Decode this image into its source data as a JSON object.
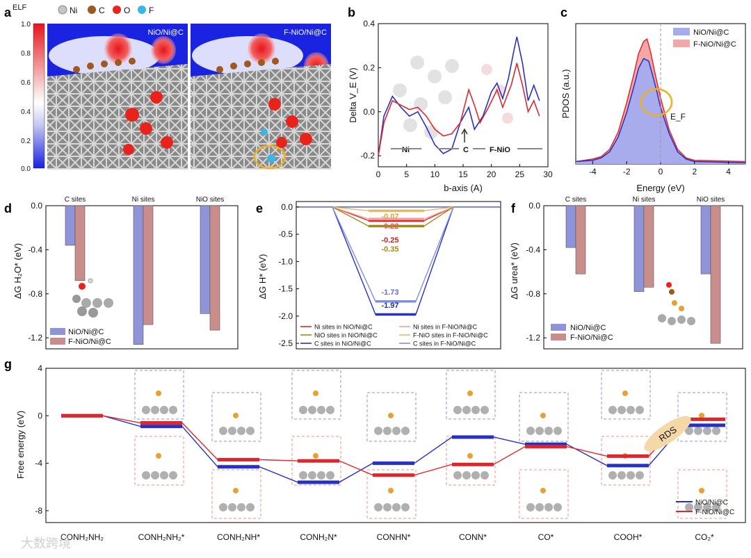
{
  "figure": {
    "panel_letters": [
      "a",
      "b",
      "c",
      "d",
      "e",
      "f",
      "g"
    ],
    "watermark": "大数跨境"
  },
  "panel_a": {
    "legend": {
      "title": "ELF",
      "ticks": [
        "1.0",
        "0.8",
        "0.6",
        "0.4",
        "0.2",
        "0.0"
      ]
    },
    "atoms": [
      "Ni",
      "C",
      "O",
      "F"
    ],
    "atom_colors": {
      "Ni": "#b5b5b5",
      "C": "#a0581c",
      "O": "#e8231c",
      "F": "#3ab5e6"
    },
    "left_label": "NiO/Ni@C",
    "right_label": "F-NiO/Ni@C"
  },
  "chart_data": [
    {
      "panel": "b",
      "type": "line",
      "ylabel": "Delta V_E (V)",
      "xlabel": "b-axis (A)",
      "xlim": [
        0,
        30
      ],
      "ylim": [
        -0.25,
        0.4
      ],
      "xticks": [
        "0",
        "5",
        "10",
        "15",
        "20",
        "25",
        "30"
      ],
      "yticks": [
        "-0.2",
        "0.0",
        "0.2",
        "0.4"
      ],
      "region_labels": [
        "Ni",
        "C",
        "F-NiO"
      ],
      "series": [
        {
          "color": "#2630c4",
          "points": [
            [
              0,
              -0.2
            ],
            [
              1,
              -0.02
            ],
            [
              2.5,
              0.07
            ],
            [
              4,
              0.02
            ],
            [
              5.5,
              -0.02
            ],
            [
              7,
              0.0
            ],
            [
              8.5,
              -0.07
            ],
            [
              10,
              -0.15
            ],
            [
              11.5,
              -0.19
            ],
            [
              13,
              -0.17
            ],
            [
              14.5,
              -0.05
            ],
            [
              16,
              0.02
            ],
            [
              17,
              -0.08
            ],
            [
              18.5,
              -0.02
            ],
            [
              20,
              0.09
            ],
            [
              21,
              0.13
            ],
            [
              22,
              0.06
            ],
            [
              23,
              0.15
            ],
            [
              24,
              0.28
            ],
            [
              24.5,
              0.34
            ],
            [
              25.5,
              0.22
            ],
            [
              26.5,
              0.05
            ],
            [
              27.5,
              0.12
            ],
            [
              28.5,
              0.05
            ]
          ]
        },
        {
          "color": "#e0262b",
          "points": [
            [
              0,
              -0.2
            ],
            [
              1,
              -0.05
            ],
            [
              2.5,
              0.05
            ],
            [
              4,
              0.03
            ],
            [
              5.5,
              0.01
            ],
            [
              7,
              0.02
            ],
            [
              8.5,
              -0.02
            ],
            [
              10,
              -0.08
            ],
            [
              11.5,
              -0.11
            ],
            [
              13,
              -0.1
            ],
            [
              14.5,
              -0.05
            ],
            [
              16,
              0.1
            ],
            [
              17,
              0.03
            ],
            [
              18,
              -0.05
            ],
            [
              19.5,
              0.02
            ],
            [
              21,
              0.1
            ],
            [
              22,
              0.02
            ],
            [
              23.5,
              0.12
            ],
            [
              24.5,
              0.22
            ],
            [
              25.5,
              0.12
            ],
            [
              26.5,
              0.0
            ],
            [
              27.5,
              0.05
            ],
            [
              28.5,
              -0.02
            ]
          ]
        }
      ]
    },
    {
      "panel": "c",
      "type": "area",
      "ylabel": "PDOS (a.u.)",
      "xlabel": "Energy (eV)",
      "xlim": [
        -5,
        5
      ],
      "xticks": [
        "-4",
        "-2",
        "0",
        "2",
        "4"
      ],
      "fermi_label": "E_F",
      "series": [
        {
          "name": "NiO/Ni@C",
          "color": "#2630c4",
          "fill": "#a8acec",
          "points": [
            [
              -5,
              0.02
            ],
            [
              -4,
              0.03
            ],
            [
              -3.5,
              0.05
            ],
            [
              -3,
              0.1
            ],
            [
              -2.5,
              0.22
            ],
            [
              -2,
              0.42
            ],
            [
              -1.6,
              0.62
            ],
            [
              -1.3,
              0.78
            ],
            [
              -1,
              0.86
            ],
            [
              -0.7,
              0.84
            ],
            [
              -0.5,
              0.74
            ],
            [
              -0.2,
              0.58
            ],
            [
              0,
              0.46
            ],
            [
              0.5,
              0.25
            ],
            [
              1,
              0.1
            ],
            [
              1.5,
              0.04
            ],
            [
              2,
              0.02
            ],
            [
              5,
              0.01
            ]
          ]
        },
        {
          "name": "F-NiO/Ni@C",
          "color": "#e0262b",
          "fill": "#f2a8a6",
          "points": [
            [
              -5,
              0.02
            ],
            [
              -4,
              0.04
            ],
            [
              -3.5,
              0.06
            ],
            [
              -3,
              0.12
            ],
            [
              -2.5,
              0.26
            ],
            [
              -2,
              0.5
            ],
            [
              -1.6,
              0.72
            ],
            [
              -1.3,
              0.9
            ],
            [
              -1,
              1.0
            ],
            [
              -0.8,
              1.02
            ],
            [
              -0.6,
              0.92
            ],
            [
              -0.3,
              0.72
            ],
            [
              0,
              0.54
            ],
            [
              0.5,
              0.28
            ],
            [
              1,
              0.12
            ],
            [
              1.5,
              0.05
            ],
            [
              2,
              0.03
            ],
            [
              5,
              0.02
            ]
          ]
        }
      ]
    },
    {
      "panel": "d",
      "type": "bar",
      "ylabel": "ΔG H₂O* (eV)",
      "ylim": [
        -1.3,
        0
      ],
      "yticks": [
        "0.0",
        "-0.4",
        "-0.8",
        "-1.2"
      ],
      "categories": [
        "C sites",
        "Ni sites",
        "NiO sites"
      ],
      "series": [
        {
          "name": "NiO/Ni@C",
          "color": "#8f93d8",
          "values": [
            -0.36,
            -1.26,
            -0.98
          ]
        },
        {
          "name": "F-NiO/Ni@C",
          "color": "#c98e8c",
          "values": [
            -0.68,
            -1.08,
            -1.13
          ]
        }
      ]
    },
    {
      "panel": "e",
      "type": "line",
      "ylabel": "ΔG H* (eV)",
      "ylim": [
        -2.6,
        0.1
      ],
      "yticks": [
        "0.0",
        "-0.5",
        "-1.0",
        "-1.5",
        "-2.0",
        "-2.5"
      ],
      "series": [
        {
          "name": "Ni sites in NiO/Ni@C",
          "color": "#e0262b",
          "value": -0.25
        },
        {
          "name": "Ni sites in F-NiO/Ni@C",
          "color": "#f2a0a0",
          "value": -0.22
        },
        {
          "name": "NiO sites in NiO/Ni@C",
          "color": "#a08a10",
          "value": -0.35
        },
        {
          "name": "F-NiO sites in F-NiO/Ni@C",
          "color": "#e8b868",
          "value": -0.07
        },
        {
          "name": "C sites in NiO/Ni@C",
          "color": "#2630c4",
          "value": -1.97
        },
        {
          "name": "C sites in F-NiO/Ni@C",
          "color": "#7f8ee6",
          "value": -1.73
        }
      ],
      "value_labels": [
        "-0.07",
        "-0.22",
        "-0.25",
        "-0.35",
        "-1.73",
        "-1.97"
      ]
    },
    {
      "panel": "f",
      "type": "bar",
      "ylabel": "ΔG urea* (eV)",
      "ylim": [
        -1.3,
        0
      ],
      "yticks": [
        "0.0",
        "-0.4",
        "-0.8",
        "-1.2"
      ],
      "categories": [
        "C sites",
        "Ni sites",
        "NiO sites"
      ],
      "series": [
        {
          "name": "NiO/Ni@C",
          "color": "#8f93d8",
          "values": [
            -0.38,
            -0.78,
            -0.62
          ]
        },
        {
          "name": "F-NiO/Ni@C",
          "color": "#c98e8c",
          "values": [
            -0.62,
            -0.74,
            -1.25
          ]
        }
      ]
    },
    {
      "panel": "g",
      "type": "line",
      "ylabel": "Free energy (eV)",
      "ylim": [
        -9,
        4
      ],
      "yticks": [
        "4",
        "0",
        "-4",
        "-8"
      ],
      "categories": [
        "CONH₂NH₂",
        "CONH₂NH₂*",
        "CONH₂NH*",
        "CONH₂N*",
        "CONHN*",
        "CONN*",
        "CO*",
        "COOH*",
        "CO₂*"
      ],
      "series": [
        {
          "name": "NiO/Ni@C",
          "color": "#2630c4",
          "values": [
            0,
            -0.9,
            -4.3,
            -5.6,
            -4.0,
            -1.8,
            -2.4,
            -4.2,
            -0.8
          ]
        },
        {
          "name": "F-NiO/Ni@C",
          "color": "#e0262b",
          "values": [
            0,
            -0.6,
            -3.7,
            -3.8,
            -5.0,
            -4.1,
            -2.6,
            -3.4,
            -0.3
          ]
        }
      ],
      "annotation": "RDS"
    }
  ]
}
